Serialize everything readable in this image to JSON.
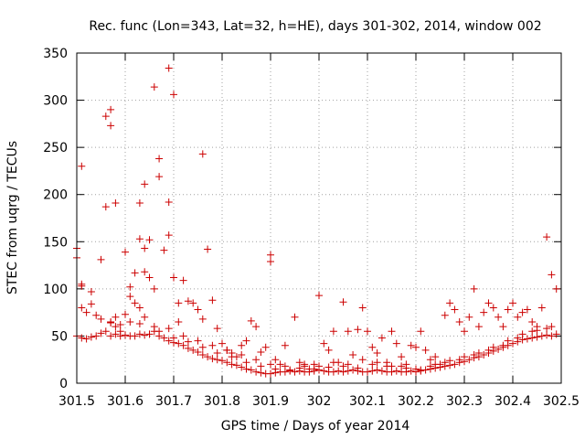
{
  "chart_data": {
    "type": "scatter",
    "title": "Rec. func (Lon=343, Lat=32, h=HE), days 301-302, 2014, window 002",
    "xlabel": "GPS time / Days of year 2014",
    "ylabel": "STEC from uqrg / TECUs",
    "xlim": [
      301.5,
      302.5
    ],
    "ylim": [
      0,
      350
    ],
    "x_ticks": [
      301.5,
      301.6,
      301.7,
      301.8,
      301.9,
      302.0,
      302.1,
      302.2,
      302.3,
      302.4,
      302.5
    ],
    "x_tick_labels": [
      "301.5",
      "301.6",
      "301.7",
      "301.8",
      "301.9",
      "302",
      "302.1",
      "302.2",
      "302.3",
      "302.4",
      "302.5"
    ],
    "y_ticks": [
      0,
      50,
      100,
      150,
      200,
      250,
      300,
      350
    ],
    "y_tick_labels": [
      "0",
      "50",
      "100",
      "150",
      "200",
      "250",
      "300",
      "350"
    ],
    "grid": true,
    "marker": "+",
    "color": "#cc0000",
    "series": [
      {
        "name": "STEC",
        "points": [
          [
            301.5,
            143
          ],
          [
            301.5,
            133
          ],
          [
            301.51,
            230
          ],
          [
            301.51,
            105
          ],
          [
            301.51,
            103
          ],
          [
            301.51,
            80
          ],
          [
            301.52,
            75
          ],
          [
            301.53,
            97
          ],
          [
            301.53,
            84
          ],
          [
            301.54,
            72
          ],
          [
            301.55,
            131
          ],
          [
            301.56,
            283
          ],
          [
            301.56,
            187
          ],
          [
            301.57,
            290
          ],
          [
            301.57,
            273
          ],
          [
            301.58,
            191
          ],
          [
            301.57,
            64
          ],
          [
            301.58,
            70
          ],
          [
            301.59,
            62
          ],
          [
            301.59,
            55
          ],
          [
            301.6,
            139
          ],
          [
            301.61,
            102
          ],
          [
            301.61,
            92
          ],
          [
            301.62,
            117
          ],
          [
            301.62,
            85
          ],
          [
            301.63,
            191
          ],
          [
            301.63,
            153
          ],
          [
            301.63,
            80
          ],
          [
            301.64,
            211
          ],
          [
            301.64,
            143
          ],
          [
            301.64,
            118
          ],
          [
            301.65,
            152
          ],
          [
            301.65,
            112
          ],
          [
            301.66,
            314
          ],
          [
            301.66,
            100
          ],
          [
            301.67,
            238
          ],
          [
            301.67,
            219
          ],
          [
            301.68,
            141
          ],
          [
            301.69,
            334
          ],
          [
            301.69,
            192
          ],
          [
            301.69,
            157
          ],
          [
            301.7,
            306
          ],
          [
            301.7,
            112
          ],
          [
            301.71,
            85
          ],
          [
            301.71,
            65
          ],
          [
            301.72,
            109
          ],
          [
            301.73,
            87
          ],
          [
            301.74,
            85
          ],
          [
            301.75,
            78
          ],
          [
            301.76,
            243
          ],
          [
            301.76,
            68
          ],
          [
            301.77,
            142
          ],
          [
            301.78,
            88
          ],
          [
            301.79,
            58
          ],
          [
            301.8,
            42
          ],
          [
            301.81,
            35
          ],
          [
            301.82,
            32
          ],
          [
            301.83,
            28
          ],
          [
            301.84,
            40
          ],
          [
            301.85,
            45
          ],
          [
            301.86,
            66
          ],
          [
            301.87,
            60
          ],
          [
            301.88,
            33
          ],
          [
            301.89,
            38
          ],
          [
            301.9,
            136
          ],
          [
            301.9,
            129
          ],
          [
            301.91,
            25
          ],
          [
            301.92,
            20
          ],
          [
            301.93,
            40
          ],
          [
            301.95,
            70
          ],
          [
            301.96,
            22
          ],
          [
            301.97,
            18
          ],
          [
            301.98,
            15
          ],
          [
            301.99,
            20
          ],
          [
            302.0,
            93
          ],
          [
            302.01,
            42
          ],
          [
            302.02,
            35
          ],
          [
            302.03,
            55
          ],
          [
            302.04,
            22
          ],
          [
            302.05,
            86
          ],
          [
            302.06,
            55
          ],
          [
            302.07,
            30
          ],
          [
            302.08,
            57
          ],
          [
            302.09,
            80
          ],
          [
            302.1,
            55
          ],
          [
            302.11,
            38
          ],
          [
            302.12,
            32
          ],
          [
            302.13,
            48
          ],
          [
            302.14,
            18
          ],
          [
            302.15,
            55
          ],
          [
            302.16,
            42
          ],
          [
            302.17,
            28
          ],
          [
            302.18,
            20
          ],
          [
            302.19,
            40
          ],
          [
            302.2,
            38
          ],
          [
            302.21,
            55
          ],
          [
            302.22,
            35
          ],
          [
            302.23,
            25
          ],
          [
            302.24,
            28
          ],
          [
            302.25,
            20
          ],
          [
            302.26,
            72
          ],
          [
            302.27,
            85
          ],
          [
            302.28,
            78
          ],
          [
            302.29,
            65
          ],
          [
            302.3,
            55
          ],
          [
            302.31,
            70
          ],
          [
            302.32,
            100
          ],
          [
            302.33,
            60
          ],
          [
            302.34,
            75
          ],
          [
            302.35,
            85
          ],
          [
            302.36,
            80
          ],
          [
            302.37,
            70
          ],
          [
            302.38,
            60
          ],
          [
            302.39,
            78
          ],
          [
            302.4,
            85
          ],
          [
            302.41,
            70
          ],
          [
            302.42,
            75
          ],
          [
            302.43,
            78
          ],
          [
            302.44,
            65
          ],
          [
            302.45,
            60
          ],
          [
            302.46,
            80
          ],
          [
            302.47,
            155
          ],
          [
            302.48,
            115
          ],
          [
            302.49,
            100
          ],
          [
            301.5,
            50
          ],
          [
            301.51,
            48
          ],
          [
            301.52,
            47
          ],
          [
            301.53,
            49
          ],
          [
            301.54,
            50
          ],
          [
            301.55,
            53
          ],
          [
            301.56,
            55
          ],
          [
            301.57,
            50
          ],
          [
            301.58,
            52
          ],
          [
            301.59,
            50
          ],
          [
            301.6,
            51
          ],
          [
            301.61,
            50
          ],
          [
            301.62,
            50
          ],
          [
            301.63,
            52
          ],
          [
            301.64,
            51
          ],
          [
            301.65,
            52
          ],
          [
            301.66,
            55
          ],
          [
            301.67,
            50
          ],
          [
            301.68,
            48
          ],
          [
            301.69,
            45
          ],
          [
            301.7,
            43
          ],
          [
            301.71,
            42
          ],
          [
            301.72,
            40
          ],
          [
            301.73,
            37
          ],
          [
            301.74,
            35
          ],
          [
            301.75,
            33
          ],
          [
            301.76,
            30
          ],
          [
            301.77,
            28
          ],
          [
            301.78,
            26
          ],
          [
            301.79,
            25
          ],
          [
            301.8,
            24
          ],
          [
            301.81,
            22
          ],
          [
            301.82,
            20
          ],
          [
            301.83,
            19
          ],
          [
            301.84,
            17
          ],
          [
            301.85,
            15
          ],
          [
            301.86,
            14
          ],
          [
            301.87,
            12
          ],
          [
            301.88,
            11
          ],
          [
            301.89,
            10
          ],
          [
            301.9,
            10
          ],
          [
            301.91,
            11
          ],
          [
            301.92,
            12
          ],
          [
            301.93,
            12
          ],
          [
            301.94,
            13
          ],
          [
            301.95,
            12
          ],
          [
            301.96,
            13
          ],
          [
            301.97,
            12
          ],
          [
            301.98,
            12
          ],
          [
            301.99,
            13
          ],
          [
            302.0,
            14
          ],
          [
            302.01,
            13
          ],
          [
            302.02,
            12
          ],
          [
            302.03,
            12
          ],
          [
            302.04,
            13
          ],
          [
            302.05,
            12
          ],
          [
            302.06,
            13
          ],
          [
            302.07,
            14
          ],
          [
            302.08,
            13
          ],
          [
            302.09,
            12
          ],
          [
            302.1,
            12
          ],
          [
            302.11,
            13
          ],
          [
            302.12,
            14
          ],
          [
            302.13,
            13
          ],
          [
            302.14,
            12
          ],
          [
            302.15,
            12
          ],
          [
            302.16,
            13
          ],
          [
            302.17,
            12
          ],
          [
            302.18,
            12
          ],
          [
            302.19,
            13
          ],
          [
            302.2,
            12
          ],
          [
            302.21,
            13
          ],
          [
            302.22,
            14
          ],
          [
            302.23,
            15
          ],
          [
            302.24,
            16
          ],
          [
            302.25,
            17
          ],
          [
            302.26,
            18
          ],
          [
            302.27,
            19
          ],
          [
            302.28,
            20
          ],
          [
            302.29,
            22
          ],
          [
            302.3,
            23
          ],
          [
            302.31,
            25
          ],
          [
            302.32,
            27
          ],
          [
            302.33,
            28
          ],
          [
            302.34,
            30
          ],
          [
            302.35,
            32
          ],
          [
            302.36,
            34
          ],
          [
            302.37,
            36
          ],
          [
            302.38,
            38
          ],
          [
            302.39,
            40
          ],
          [
            302.4,
            42
          ],
          [
            302.41,
            44
          ],
          [
            302.42,
            46
          ],
          [
            302.43,
            47
          ],
          [
            302.44,
            48
          ],
          [
            302.45,
            49
          ],
          [
            302.46,
            50
          ],
          [
            302.47,
            51
          ],
          [
            302.48,
            50
          ],
          [
            302.49,
            52
          ],
          [
            301.55,
            68
          ],
          [
            301.57,
            65
          ],
          [
            301.6,
            73
          ],
          [
            301.63,
            63
          ],
          [
            301.66,
            60
          ],
          [
            301.69,
            58
          ],
          [
            301.72,
            50
          ],
          [
            301.75,
            45
          ],
          [
            301.78,
            40
          ],
          [
            301.81,
            35
          ],
          [
            301.84,
            30
          ],
          [
            301.87,
            25
          ],
          [
            301.9,
            20
          ],
          [
            301.93,
            18
          ],
          [
            301.96,
            16
          ],
          [
            301.99,
            15
          ],
          [
            302.02,
            17
          ],
          [
            302.05,
            18
          ],
          [
            302.08,
            16
          ],
          [
            302.11,
            20
          ],
          [
            302.14,
            22
          ],
          [
            302.17,
            18
          ],
          [
            302.2,
            15
          ],
          [
            302.23,
            18
          ],
          [
            302.26,
            22
          ],
          [
            302.29,
            25
          ],
          [
            302.32,
            30
          ],
          [
            302.35,
            35
          ],
          [
            302.38,
            40
          ],
          [
            302.41,
            48
          ],
          [
            302.44,
            55
          ],
          [
            302.47,
            58
          ],
          [
            301.58,
            60
          ],
          [
            301.61,
            65
          ],
          [
            301.64,
            70
          ],
          [
            301.67,
            55
          ],
          [
            301.7,
            48
          ],
          [
            301.73,
            44
          ],
          [
            301.76,
            38
          ],
          [
            301.79,
            32
          ],
          [
            301.82,
            28
          ],
          [
            301.85,
            22
          ],
          [
            301.88,
            18
          ],
          [
            301.91,
            15
          ],
          [
            301.94,
            14
          ],
          [
            301.97,
            20
          ],
          [
            302.0,
            18
          ],
          [
            302.03,
            22
          ],
          [
            302.06,
            20
          ],
          [
            302.09,
            25
          ],
          [
            302.12,
            22
          ],
          [
            302.15,
            18
          ],
          [
            302.18,
            16
          ],
          [
            302.21,
            14
          ],
          [
            302.24,
            20
          ],
          [
            302.27,
            24
          ],
          [
            302.3,
            28
          ],
          [
            302.33,
            32
          ],
          [
            302.36,
            38
          ],
          [
            302.39,
            45
          ],
          [
            302.42,
            52
          ],
          [
            302.45,
            56
          ],
          [
            302.48,
            60
          ]
        ]
      }
    ]
  }
}
